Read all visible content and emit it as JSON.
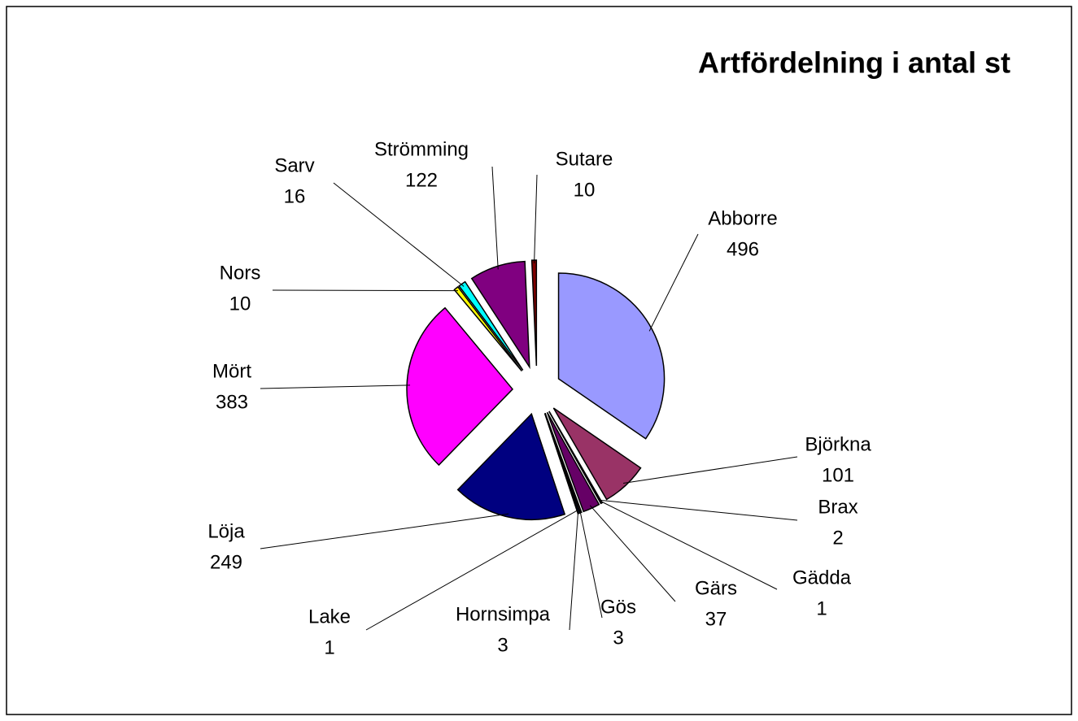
{
  "chart_data": {
    "type": "pie",
    "title": "Artfördelning i antal st",
    "categories": [
      "Abborre",
      "Björkna",
      "Brax",
      "Gädda",
      "Gärs",
      "Gös",
      "Hornsimpa",
      "Lake",
      "Löja",
      "Mört",
      "Nors",
      "Sarv",
      "Strömming",
      "Sutare"
    ],
    "values": [
      496,
      101,
      2,
      1,
      37,
      3,
      3,
      1,
      249,
      383,
      10,
      16,
      122,
      10
    ],
    "colors": [
      "#9999ff",
      "#993366",
      "#ffffcc",
      "#ccffff",
      "#660066",
      "#ff8080",
      "#0066cc",
      "#ccccff",
      "#000080",
      "#ff00ff",
      "#ffff00",
      "#00ffff",
      "#800080",
      "#800000"
    ],
    "exploded": true
  }
}
